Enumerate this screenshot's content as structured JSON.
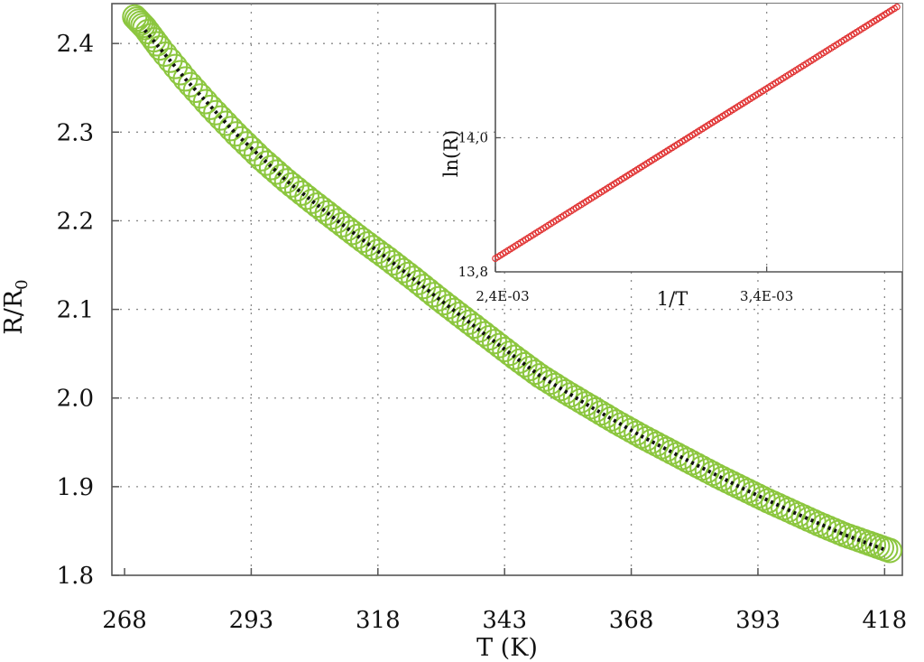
{
  "colors": {
    "main_markers": "#8cc63f",
    "main_fit": "#111111",
    "inset_markers": "#e03030",
    "frame": "#555555",
    "grid": "#8a8a8a"
  },
  "chart_data": [
    {
      "id": "main",
      "type": "scatter",
      "title": "",
      "xlabel": "T (K)",
      "ylabel_main": "R/R",
      "ylabel_sub": "0",
      "xlim": [
        265.5,
        421.5
      ],
      "ylim": [
        1.8,
        2.445
      ],
      "x_ticks": [
        "268",
        "293",
        "318",
        "343",
        "368",
        "393",
        "418"
      ],
      "x_tick_values": [
        268,
        293,
        318,
        343,
        368,
        393,
        418
      ],
      "y_ticks": [
        "1.8",
        "1.9",
        "2.0",
        "2.1",
        "2.2",
        "2.3",
        "2.4"
      ],
      "y_tick_values": [
        1.8,
        1.9,
        2.0,
        2.1,
        2.2,
        2.3,
        2.4
      ],
      "grid": true,
      "series": [
        {
          "kind": "markers",
          "marker": "open-circle",
          "x": [
            270,
            272,
            275,
            280,
            285,
            290,
            295,
            300,
            305,
            310,
            315,
            320,
            325,
            330,
            335,
            340,
            345,
            350,
            355,
            360,
            365,
            370,
            375,
            380,
            385,
            390,
            395,
            400,
            405,
            410,
            415,
            419
          ],
          "values": [
            2.43,
            2.418,
            2.395,
            2.36,
            2.328,
            2.298,
            2.27,
            2.245,
            2.222,
            2.2,
            2.178,
            2.157,
            2.135,
            2.112,
            2.09,
            2.068,
            2.046,
            2.025,
            2.007,
            1.99,
            1.973,
            1.957,
            1.942,
            1.927,
            1.912,
            1.898,
            1.884,
            1.871,
            1.858,
            1.846,
            1.836,
            1.828
          ]
        },
        {
          "kind": "fit",
          "marker": "dotted-line",
          "x": [
            272,
            280,
            290,
            300,
            310,
            320,
            330,
            340,
            350,
            360,
            370,
            380,
            390,
            400,
            410,
            418
          ],
          "values": [
            2.415,
            2.36,
            2.298,
            2.245,
            2.2,
            2.157,
            2.112,
            2.068,
            2.025,
            1.99,
            1.957,
            1.927,
            1.898,
            1.871,
            1.846,
            1.829
          ]
        }
      ]
    },
    {
      "id": "inset",
      "type": "scatter",
      "title": "",
      "xlabel": "1/T",
      "ylabel": "ln(R)",
      "xlim": [
        0.0024,
        0.0039
      ],
      "ylim": [
        13.8,
        14.2
      ],
      "x_ticks": [
        "2,4E-03",
        "3,4E-03"
      ],
      "x_tick_values": [
        0.0024,
        0.0034
      ],
      "y_ticks": [
        "13,8",
        "14,0"
      ],
      "y_tick_values": [
        13.8,
        14.0
      ],
      "grid": true,
      "series": [
        {
          "kind": "markers",
          "marker": "open-circle",
          "x_start": 0.0024,
          "x_end": 0.00388,
          "y_start": 13.82,
          "y_end": 14.195,
          "count": 160
        }
      ]
    }
  ]
}
